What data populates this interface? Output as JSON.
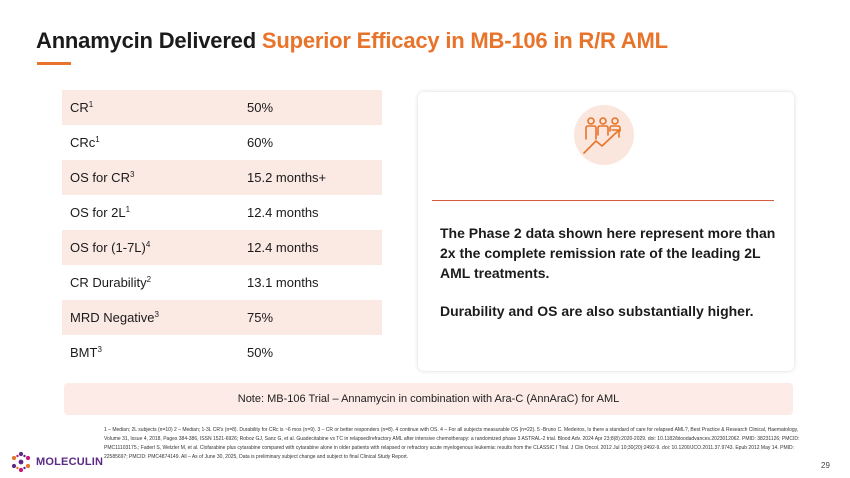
{
  "slide": {
    "title_main": "Annamycin Delivered ",
    "title_accent": "Superior Efficacy in MB-106 in R/R AML"
  },
  "metrics": [
    {
      "label": "CR",
      "sup": "1",
      "value": "50%"
    },
    {
      "label": "CRc",
      "sup": "1",
      "value": "60%"
    },
    {
      "label": "OS for CR",
      "sup": "3",
      "value": "15.2 months+"
    },
    {
      "label": "OS for 2L",
      "sup": "1",
      "value": "12.4 months"
    },
    {
      "label": "OS for (1-7L)",
      "sup": "4",
      "value": "12.4 months"
    },
    {
      "label": "CR Durability",
      "sup": "2",
      "value": "13.1 months"
    },
    {
      "label": "MRD Negative",
      "sup": "3",
      "value": "75%"
    },
    {
      "label": "BMT",
      "sup": "3",
      "value": "50%"
    }
  ],
  "card": {
    "icon": "people-growth-arrow-icon",
    "statement_1": "The Phase 2 data shown here represent more than 2x the complete remission rate of the leading 2L AML treatments.",
    "statement_2": "Durability and OS are also substantially higher."
  },
  "note": "Note: MB-106 Trial – Annamycin in combination with Ara-C (AnnAraC) for AML",
  "footnotes": "1 – Median; 2L subjects (n=10) 2 – Median; 1-3L CR's (n=8). Durability for CRc is ~6 mos (n=9). 3 – CR or better responders (n=8). 4 continue with OS. 4 – For all subjects measurable OS (n=22). 5 -Bruno C. Medeiros, Is there a standard of care for relapsed AML?, Best Practice & Research Clinical, Haematology, Volume 31, Issue 4, 2018, Pages 384-386, ISSN 1521-6926; Roboz GJ, Sanz G, et al. Guadecitabine vs TC in relapsed/refractory AML after intensive chemotherapy: a randomized phase 3 ASTRAL-2 trial. Blood Adv. 2024 Apr 23;8(8):2020-2029. doi: 10.1182/bloodadvances.2023012062. PMID: 38231126; PMCID: PMC11103175.; Faderl S, Wetzler M, et al. Clofarabine plus cytarabine compared with cytarabine alone in older patients with relapsed or refractory acute myelogenous leukemia: results from the CLASSIC I Trial. J Clin Oncol. 2012 Jul 10;30(20):2492-9. doi: 10.1200/JCO.2011.37.9743. Epub 2012 May 14. PMID: 22585697; PMCID: PMC4874149. All – As of June 30, 2025, Data is preliminary subject change and subject to final Clinical Study Report.",
  "logo": {
    "icon": "moleculin-logo-icon",
    "text": "MOLECULIN",
    "colors": {
      "purple": "#5b2a86",
      "magenta": "#c2187a",
      "orange": "#e8732a"
    }
  },
  "page_number": "29",
  "colors": {
    "accent": "#e8732a",
    "row_shade": "#fbe9e4",
    "card_rule": "#d45a42",
    "note_bg": "#fcebe6"
  }
}
